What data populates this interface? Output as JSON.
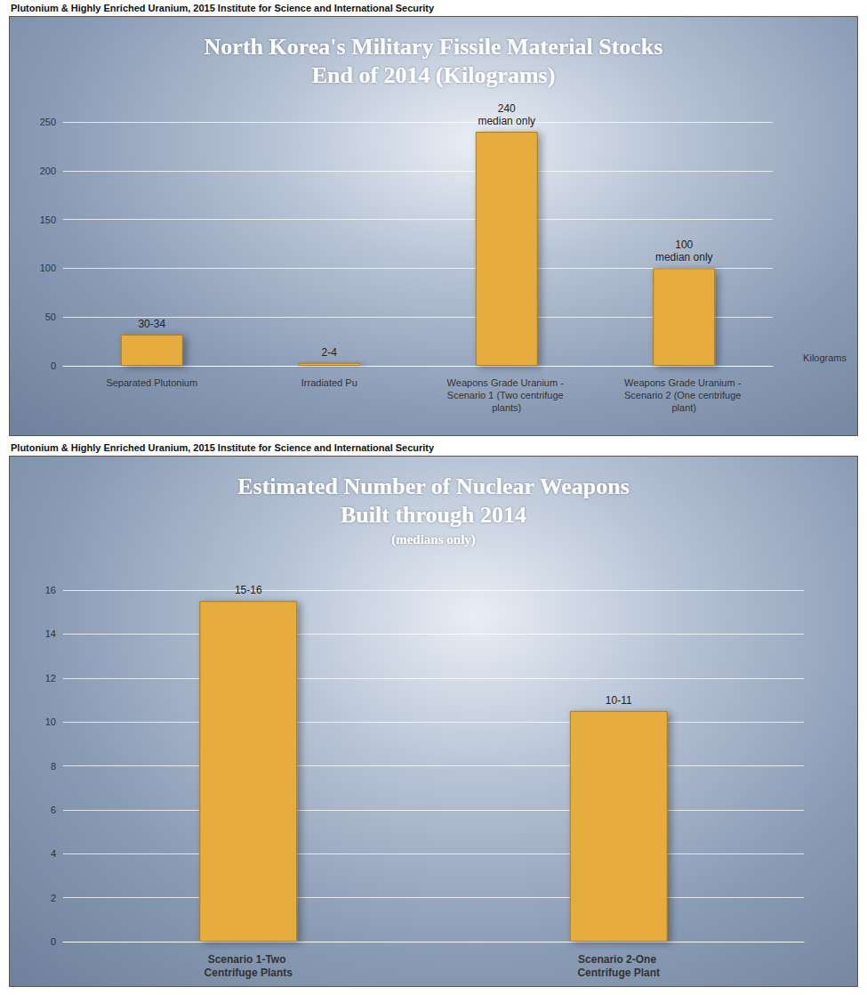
{
  "chart_data": [
    {
      "type": "bar",
      "source": "Plutonium & Highly Enriched Uranium, 2015 Institute for Science and International Security",
      "title": "North Korea's Military Fissile Material Stocks\nEnd of 2014 (Kilograms)",
      "ylabel": "Kilograms",
      "categories": [
        "Separated Plutonium",
        "Irradiated Pu",
        "Weapons Grade Uranium - Scenario 1 (Two centrifuge plants)",
        "Weapons Grade Uranium - Scenario 2 (One centrifuge plant)"
      ],
      "values": [
        32,
        3,
        240,
        100
      ],
      "value_labels": [
        "30-34",
        "2-4",
        "240\nmedian only",
        "100\nmedian only"
      ],
      "color": "#e6ac3c",
      "ylim": [
        0,
        250
      ],
      "yticks": [
        0,
        50,
        100,
        150,
        200,
        250
      ],
      "grid": true,
      "data_labels": true
    },
    {
      "type": "bar",
      "source": "Plutonium & Highly Enriched Uranium, 2015 Institute for Science and International Security",
      "title": "Estimated Number of Nuclear Weapons\nBuilt through 2014",
      "subtitle": "(medians only)",
      "categories": [
        "Scenario 1-Two Centrifuge Plants",
        "Scenario 2-One Centrifuge Plant"
      ],
      "values": [
        15.5,
        10.5
      ],
      "value_labels": [
        "15-16",
        "10-11"
      ],
      "color": "#e6ac3c",
      "ylim": [
        0,
        16
      ],
      "yticks": [
        0,
        2,
        4,
        6,
        8,
        10,
        12,
        14,
        16
      ],
      "grid": true,
      "data_labels": true
    }
  ]
}
